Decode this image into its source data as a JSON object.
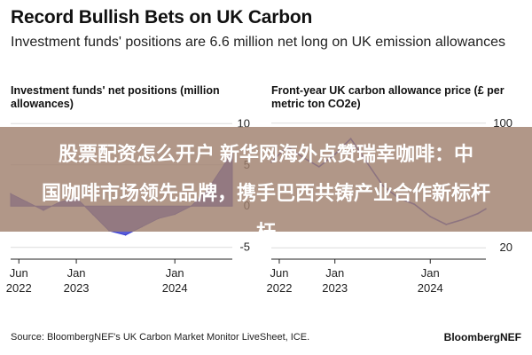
{
  "header": {
    "title": "Record Bullish Bets on UK Carbon",
    "subtitle": "Investment funds' positions are 6.6 million net long on UK emission allowances"
  },
  "chart_data": [
    {
      "type": "area",
      "title": "Investment funds' net positions (million allowances)",
      "x_ticks": [
        {
          "x": "2022-06",
          "line1": "Jun",
          "line2": "2022"
        },
        {
          "x": "2023-01",
          "line1": "Jan",
          "line2": "2023"
        },
        {
          "x": "2024-01",
          "line1": "Jan",
          "line2": "2024"
        }
      ],
      "y_ticks": [
        10,
        5,
        0,
        -5
      ],
      "ylim": [
        -6,
        11
      ],
      "xlim": [
        "2022-05",
        "2024-08"
      ],
      "color": "#3b3fd0",
      "x": [
        "2022-05",
        "2022-07",
        "2022-09",
        "2022-11",
        "2023-01",
        "2023-03",
        "2023-05",
        "2023-07",
        "2023-09",
        "2023-11",
        "2024-01",
        "2024-03",
        "2024-05",
        "2024-07",
        "2024-08"
      ],
      "values": [
        1.5,
        0.5,
        -0.5,
        0.5,
        1,
        -1,
        -3,
        -3.5,
        -2.5,
        -1.5,
        -1,
        0,
        2,
        5,
        6.6
      ]
    },
    {
      "type": "line",
      "title": "Front-year UK carbon allowance price (£ per metric ton CO2e)",
      "x_ticks": [
        {
          "x": "2022-06",
          "line1": "Jun",
          "line2": "2022"
        },
        {
          "x": "2023-01",
          "line1": "Jan",
          "line2": "2023"
        },
        {
          "x": "2024-01",
          "line1": "Jan",
          "line2": "2024"
        }
      ],
      "y_ticks": [
        100,
        20
      ],
      "ylim": [
        15,
        105
      ],
      "xlim": [
        "2022-05",
        "2024-08"
      ],
      "color": "#3b3fd0",
      "x": [
        "2022-05",
        "2022-07",
        "2022-09",
        "2022-11",
        "2023-01",
        "2023-03",
        "2023-05",
        "2023-07",
        "2023-09",
        "2023-11",
        "2024-01",
        "2024-03",
        "2024-05",
        "2024-07",
        "2024-08"
      ],
      "values": [
        75,
        85,
        78,
        72,
        80,
        90,
        75,
        60,
        52,
        48,
        40,
        35,
        38,
        42,
        45
      ]
    }
  ],
  "banner": {
    "line1": "股票配资怎么开户 新华网海外点赞瑞幸咖啡：中",
    "line2": "国咖啡市场领先品牌，携手巴西共铸产业合作新标杆",
    "line3": "杆"
  },
  "footer": {
    "source": "Source: BloombergNEF's UK Carbon Market Monitor LiveSheet, ICE.",
    "brand": "BloombergNEF"
  }
}
